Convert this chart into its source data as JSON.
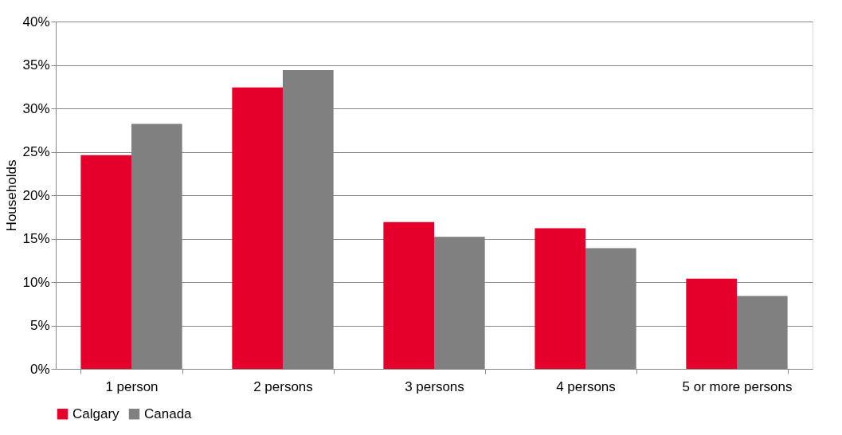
{
  "chart_data": {
    "type": "bar",
    "ylabel": "Households",
    "categories": [
      "1 person",
      "2 persons",
      "3 persons",
      "4 persons",
      "5 or more persons"
    ],
    "series": [
      {
        "name": "Calgary",
        "color": "#e4002b",
        "values": [
          24.6,
          32.4,
          16.9,
          16.2,
          10.4
        ]
      },
      {
        "name": "Canada",
        "color": "#808080",
        "values": [
          28.2,
          34.4,
          15.2,
          13.9,
          8.4
        ]
      }
    ],
    "ylim": [
      0,
      40
    ],
    "yticks": [
      {
        "value": 0,
        "label": "0%"
      },
      {
        "value": 5,
        "label": "5%"
      },
      {
        "value": 10,
        "label": "10%"
      },
      {
        "value": 15,
        "label": "15%"
      },
      {
        "value": 20,
        "label": "20%"
      },
      {
        "value": 25,
        "label": "25%"
      },
      {
        "value": 30,
        "label": "30%"
      },
      {
        "value": 35,
        "label": "35%"
      },
      {
        "value": 40,
        "label": "40%"
      }
    ],
    "grid": "y",
    "legend": "bottom"
  }
}
